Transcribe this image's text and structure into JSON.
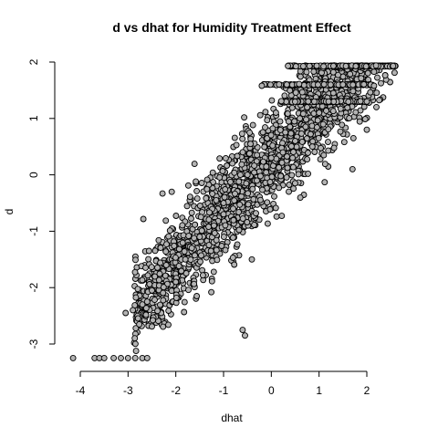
{
  "chart_data": {
    "type": "scatter",
    "title": "d vs dhat for Humidity Treatment Effect",
    "xlabel": "dhat",
    "ylabel": "d",
    "xlim": [
      -4.2,
      2.6
    ],
    "ylim": [
      -3.35,
      2.05
    ],
    "xticks": [
      -4,
      -3,
      -2,
      -1,
      0,
      1,
      2
    ],
    "yticks": [
      -3,
      -2,
      -1,
      0,
      1,
      2
    ],
    "xtick_labels": [
      "-4",
      "-3",
      "-2",
      "-1",
      "0",
      "1",
      "2"
    ],
    "ytick_labels": [
      "-3",
      "-2",
      "-1",
      "0",
      "1",
      "2"
    ],
    "grid": false,
    "legend": "none",
    "point_fill": "#b3b3b3",
    "point_stroke": "#000000",
    "description_of_cloud": {
      "main_band": {
        "x_range": [
          -2.9,
          2.6
        ],
        "slope": 0.95,
        "intercept": 0.3,
        "spread": 0.45
      },
      "top_rows_y": [
        1.93,
        1.6,
        1.3
      ],
      "bottom_row_y": -3.25
    },
    "series": [
      {
        "values_sample": [
          {
            "x": -4.15,
            "y": -3.25
          },
          {
            "x": -3.7,
            "y": -3.25
          },
          {
            "x": -3.6,
            "y": -3.25
          },
          {
            "x": -3.5,
            "y": -3.25
          },
          {
            "x": -3.3,
            "y": -3.25
          },
          {
            "x": -3.15,
            "y": -3.25
          },
          {
            "x": -3.0,
            "y": -3.25
          },
          {
            "x": -2.85,
            "y": -3.25
          },
          {
            "x": -2.7,
            "y": -3.25
          },
          {
            "x": -2.6,
            "y": -3.25
          },
          {
            "x": -3.05,
            "y": -2.45
          },
          {
            "x": -2.9,
            "y": -2.4
          },
          {
            "x": -2.7,
            "y": -2.3
          },
          {
            "x": -2.6,
            "y": -2.25
          },
          {
            "x": -2.5,
            "y": -2.05
          },
          {
            "x": -2.2,
            "y": -1.6
          },
          {
            "x": -2.0,
            "y": -1.9
          },
          {
            "x": -1.8,
            "y": -1.5
          },
          {
            "x": -1.5,
            "y": -1.1
          },
          {
            "x": -1.2,
            "y": -0.9
          },
          {
            "x": -1.0,
            "y": -0.5
          },
          {
            "x": -0.8,
            "y": -0.6
          },
          {
            "x": -0.6,
            "y": -2.75
          },
          {
            "x": -0.55,
            "y": -2.85
          },
          {
            "x": -0.5,
            "y": 0.0
          },
          {
            "x": 0.0,
            "y": 0.3
          },
          {
            "x": 0.5,
            "y": 0.6
          },
          {
            "x": 1.0,
            "y": 1.1
          },
          {
            "x": 1.2,
            "y": 1.3
          },
          {
            "x": 1.5,
            "y": 1.6
          },
          {
            "x": 0.35,
            "y": 1.93
          },
          {
            "x": 0.8,
            "y": 1.93
          },
          {
            "x": 1.3,
            "y": 1.93
          },
          {
            "x": 2.55,
            "y": 1.93
          },
          {
            "x": -0.2,
            "y": 1.58
          },
          {
            "x": 2.15,
            "y": 1.58
          },
          {
            "x": 0.9,
            "y": 1.3
          },
          {
            "x": 2.0,
            "y": 1.3
          },
          {
            "x": 1.7,
            "y": 0.1
          },
          {
            "x": 2.0,
            "y": 0.8
          },
          {
            "x": 2.2,
            "y": 1.2
          }
        ]
      }
    ]
  }
}
